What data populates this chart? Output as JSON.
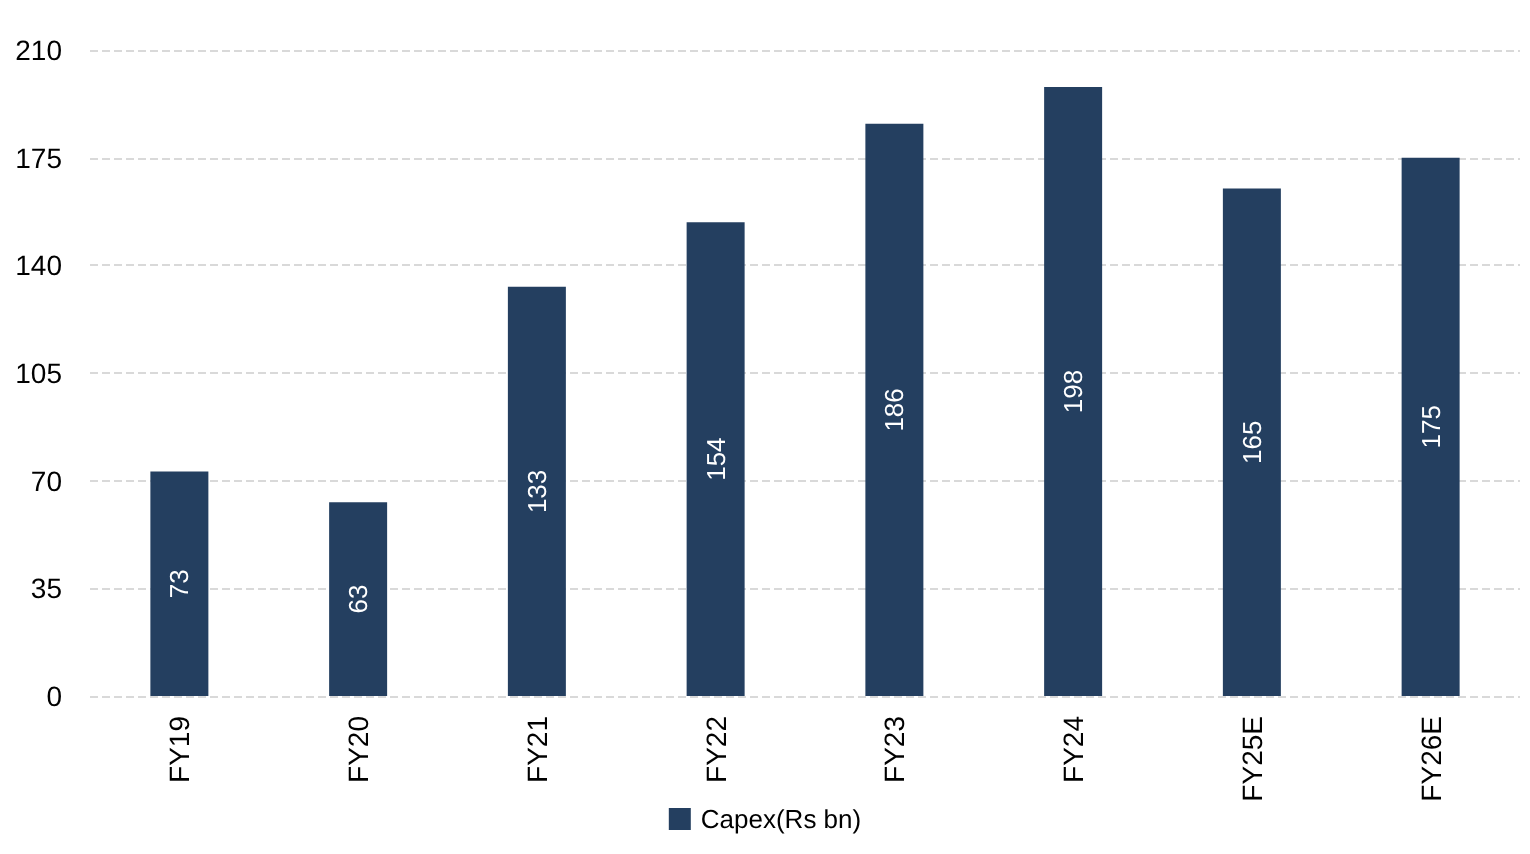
{
  "chart_data": {
    "type": "bar",
    "categories": [
      "FY19",
      "FY20",
      "FY21",
      "FY22",
      "FY23",
      "FY24",
      "FY25E",
      "FY26E"
    ],
    "series": [
      {
        "name": "Capex(Rs bn)",
        "color": "#243f60",
        "values": [
          73,
          63,
          133,
          154,
          186,
          198,
          165,
          175
        ]
      }
    ],
    "ylim": [
      0,
      210
    ],
    "yticks": [
      0,
      35,
      70,
      105,
      140,
      175,
      210
    ],
    "grid": "y",
    "data_labels": true,
    "legend": "bottom"
  }
}
